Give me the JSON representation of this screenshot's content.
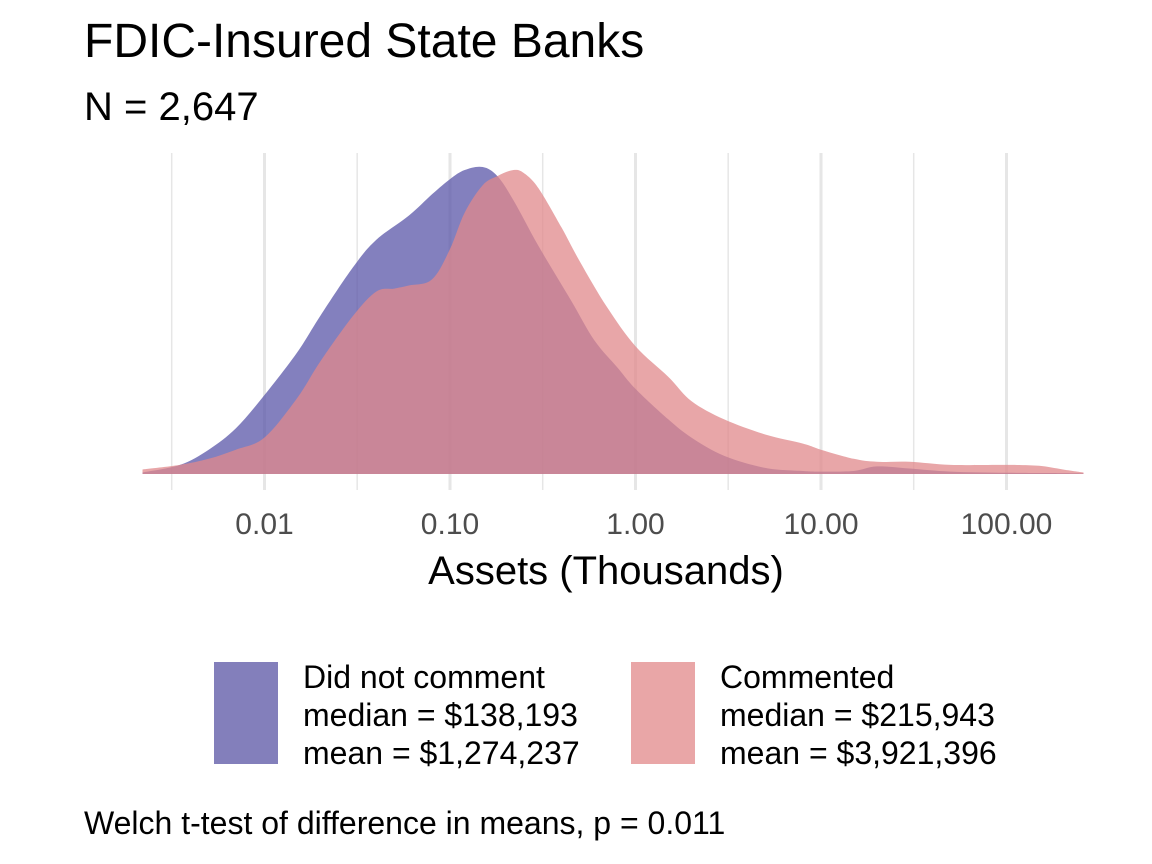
{
  "title": "FDIC-Insured State Banks",
  "subtitle": "N = 2,647",
  "caption": "Welch t-test of difference in means, p = 0.011",
  "chart_data": {
    "type": "area",
    "subtype": "density",
    "title": "FDIC-Insured State Banks",
    "subtitle": "N = 2,647",
    "xlabel": "Assets (Thousands)",
    "ylabel": "",
    "x_scale": "log10",
    "xlim": [
      0.0022,
      260
    ],
    "x_ticks": [
      0.01,
      0.1,
      1,
      10,
      100
    ],
    "x_tick_labels": [
      "0.01",
      "0.10",
      "1.00",
      "10.00",
      "100.00"
    ],
    "grid": "vertical-only",
    "legend_position": "bottom",
    "series": [
      {
        "name": "Did not comment",
        "stat_lines": [
          "median = $138,193",
          "mean = $1,274,237"
        ],
        "color": "#5a55a8",
        "x": [
          0.0022,
          0.0035,
          0.005,
          0.007,
          0.01,
          0.015,
          0.02,
          0.03,
          0.04,
          0.06,
          0.08,
          0.1,
          0.12,
          0.15,
          0.18,
          0.22,
          0.3,
          0.45,
          0.6,
          0.8,
          1,
          1.5,
          2,
          3,
          5,
          8,
          10,
          15,
          20,
          30,
          50,
          100,
          200,
          260
        ],
        "density": [
          0.005,
          0.03,
          0.08,
          0.15,
          0.26,
          0.4,
          0.52,
          0.68,
          0.77,
          0.85,
          0.92,
          0.97,
          1.0,
          1.01,
          0.98,
          0.9,
          0.75,
          0.57,
          0.44,
          0.35,
          0.28,
          0.18,
          0.12,
          0.06,
          0.02,
          0.01,
          0.008,
          0.01,
          0.025,
          0.018,
          0.008,
          0.004,
          0.003,
          0.002
        ]
      },
      {
        "name": "Commented",
        "stat_lines": [
          "median = $215,943",
          "mean = $3,921,396"
        ],
        "color": "#e0888b",
        "x": [
          0.0022,
          0.0035,
          0.005,
          0.007,
          0.01,
          0.015,
          0.02,
          0.03,
          0.04,
          0.05,
          0.06,
          0.08,
          0.1,
          0.12,
          0.15,
          0.18,
          0.22,
          0.25,
          0.3,
          0.4,
          0.5,
          0.7,
          1,
          1.5,
          2,
          3,
          5,
          8,
          10,
          15,
          20,
          30,
          50,
          100,
          150,
          200,
          260
        ],
        "density": [
          0.015,
          0.03,
          0.05,
          0.08,
          0.12,
          0.25,
          0.37,
          0.52,
          0.6,
          0.61,
          0.62,
          0.64,
          0.74,
          0.86,
          0.95,
          0.98,
          1.0,
          0.99,
          0.94,
          0.81,
          0.7,
          0.55,
          0.42,
          0.32,
          0.24,
          0.18,
          0.13,
          0.1,
          0.08,
          0.05,
          0.04,
          0.04,
          0.03,
          0.03,
          0.027,
          0.015,
          0.005
        ]
      }
    ]
  }
}
